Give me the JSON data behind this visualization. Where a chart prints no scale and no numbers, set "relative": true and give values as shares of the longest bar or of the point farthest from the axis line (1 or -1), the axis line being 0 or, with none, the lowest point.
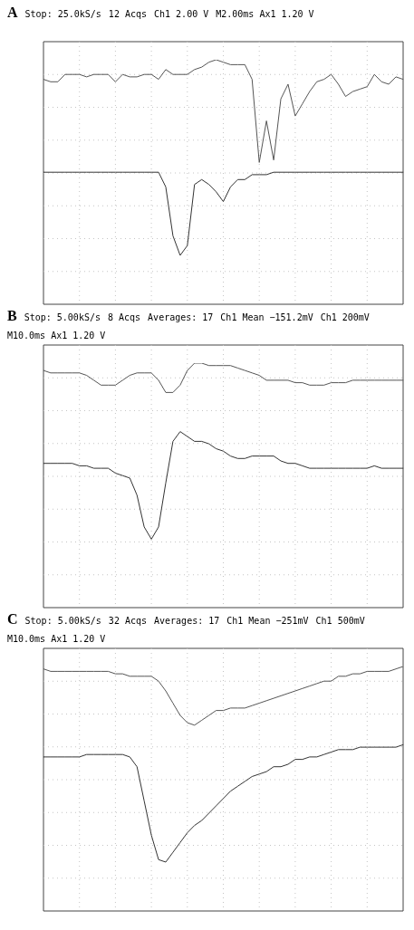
{
  "chart_data": [
    {
      "type": "line",
      "title": "A",
      "relative": true,
      "grid": true,
      "legend": false,
      "tick_labels": false,
      "marker": "none",
      "line_style": "solid",
      "annotations": [
        "Stop: 25.0kS/s",
        "12 Acqs",
        "Ch1 2.00 V",
        "M2.00ms Ax1 1.20 V"
      ],
      "categories": [
        null,
        null,
        null,
        null,
        null,
        null,
        null,
        null,
        null,
        null,
        null,
        null,
        null,
        null,
        null,
        null,
        null,
        null,
        null,
        null,
        null,
        null,
        null,
        null,
        null,
        null,
        null,
        null,
        null,
        null,
        null,
        null,
        null,
        null,
        null,
        null,
        null,
        null,
        null,
        null,
        null,
        null,
        null,
        null,
        null,
        null,
        null,
        null,
        null,
        null,
        null
      ],
      "series": [
        {
          "color": "#555555",
          "values": [
            0.92,
            0.91,
            0.91,
            0.94,
            0.94,
            0.94,
            0.93,
            0.94,
            0.94,
            0.94,
            0.91,
            0.94,
            0.93,
            0.93,
            0.94,
            0.94,
            0.92,
            0.96,
            0.94,
            0.94,
            0.94,
            0.96,
            0.97,
            0.99,
            1.0,
            0.99,
            0.98,
            0.98,
            0.98,
            0.92,
            0.58,
            0.75,
            0.59,
            0.84,
            0.9,
            0.77,
            0.82,
            0.87,
            0.91,
            0.92,
            0.94,
            0.9,
            0.85,
            0.87,
            0.88,
            0.89,
            0.94,
            0.91,
            0.9,
            0.93,
            0.92
          ]
        },
        {
          "color": "#333333",
          "values": [
            0.54,
            0.54,
            0.54,
            0.54,
            0.54,
            0.54,
            0.54,
            0.54,
            0.54,
            0.54,
            0.54,
            0.54,
            0.54,
            0.54,
            0.54,
            0.54,
            0.54,
            0.48,
            0.28,
            0.2,
            0.24,
            0.49,
            0.51,
            0.49,
            0.46,
            0.42,
            0.48,
            0.51,
            0.51,
            0.53,
            0.53,
            0.53,
            0.54,
            0.54,
            0.54,
            0.54,
            0.54,
            0.54,
            0.54,
            0.54,
            0.54,
            0.54,
            0.54,
            0.54,
            0.54,
            0.54,
            0.54,
            0.54,
            0.54,
            0.54,
            0.54
          ]
        }
      ]
    },
    {
      "type": "line",
      "title": "B",
      "relative": true,
      "grid": true,
      "legend": false,
      "tick_labels": false,
      "marker": "none",
      "line_style": "solid",
      "annotations": [
        "Stop: 5.00kS/s",
        "8 Acqs",
        "Averages: 17",
        "Ch1 Mean −151.2mV",
        "Ch1 200mV",
        "M10.0ms Ax1 1.20 V"
      ],
      "categories": [
        null,
        null,
        null,
        null,
        null,
        null,
        null,
        null,
        null,
        null,
        null,
        null,
        null,
        null,
        null,
        null,
        null,
        null,
        null,
        null,
        null,
        null,
        null,
        null,
        null,
        null,
        null,
        null,
        null,
        null,
        null,
        null,
        null,
        null,
        null,
        null,
        null,
        null,
        null,
        null,
        null,
        null,
        null,
        null,
        null,
        null,
        null,
        null,
        null,
        null,
        null
      ],
      "series": [
        {
          "color": "#555555",
          "values": [
            0.97,
            0.96,
            0.96,
            0.96,
            0.96,
            0.96,
            0.95,
            0.93,
            0.91,
            0.91,
            0.91,
            0.93,
            0.95,
            0.96,
            0.96,
            0.96,
            0.93,
            0.88,
            0.88,
            0.91,
            0.97,
            1.0,
            1.0,
            0.99,
            0.99,
            0.99,
            0.99,
            0.98,
            0.97,
            0.96,
            0.95,
            0.93,
            0.93,
            0.93,
            0.93,
            0.92,
            0.92,
            0.91,
            0.91,
            0.91,
            0.92,
            0.92,
            0.92,
            0.93,
            0.93,
            0.93,
            0.93,
            0.93,
            0.93,
            0.93,
            0.93
          ]
        },
        {
          "color": "#333333",
          "values": [
            0.59,
            0.59,
            0.59,
            0.59,
            0.59,
            0.58,
            0.58,
            0.57,
            0.57,
            0.57,
            0.55,
            0.54,
            0.53,
            0.46,
            0.33,
            0.28,
            0.33,
            0.51,
            0.68,
            0.72,
            0.7,
            0.68,
            0.68,
            0.67,
            0.65,
            0.64,
            0.62,
            0.61,
            0.61,
            0.62,
            0.62,
            0.62,
            0.62,
            0.6,
            0.59,
            0.59,
            0.58,
            0.57,
            0.57,
            0.57,
            0.57,
            0.57,
            0.57,
            0.57,
            0.57,
            0.57,
            0.58,
            0.57,
            0.57,
            0.57,
            0.57
          ]
        }
      ]
    },
    {
      "type": "line",
      "title": "C",
      "relative": true,
      "grid": true,
      "legend": false,
      "tick_labels": false,
      "marker": "none",
      "line_style": "solid",
      "annotations": [
        "Stop: 5.00kS/s",
        "32 Acqs",
        "Averages: 17",
        "Ch1 Mean −251mV",
        "Ch1 500mV",
        "M10.0ms Ax1 1.20 V"
      ],
      "categories": [
        null,
        null,
        null,
        null,
        null,
        null,
        null,
        null,
        null,
        null,
        null,
        null,
        null,
        null,
        null,
        null,
        null,
        null,
        null,
        null,
        null,
        null,
        null,
        null,
        null,
        null,
        null,
        null,
        null,
        null,
        null,
        null,
        null,
        null,
        null,
        null,
        null,
        null,
        null,
        null,
        null,
        null,
        null,
        null,
        null,
        null,
        null,
        null,
        null,
        null,
        null
      ],
      "series": [
        {
          "color": "#555555",
          "values": [
            0.99,
            0.98,
            0.98,
            0.98,
            0.98,
            0.98,
            0.98,
            0.98,
            0.98,
            0.98,
            0.97,
            0.97,
            0.96,
            0.96,
            0.96,
            0.96,
            0.94,
            0.9,
            0.85,
            0.8,
            0.77,
            0.76,
            0.78,
            0.8,
            0.82,
            0.82,
            0.83,
            0.83,
            0.83,
            0.84,
            0.85,
            0.86,
            0.87,
            0.88,
            0.89,
            0.9,
            0.91,
            0.92,
            0.93,
            0.94,
            0.94,
            0.96,
            0.96,
            0.97,
            0.97,
            0.98,
            0.98,
            0.98,
            0.98,
            0.99,
            1.0
          ]
        },
        {
          "color": "#333333",
          "values": [
            0.63,
            0.63,
            0.63,
            0.63,
            0.63,
            0.63,
            0.64,
            0.64,
            0.64,
            0.64,
            0.64,
            0.64,
            0.63,
            0.59,
            0.45,
            0.31,
            0.21,
            0.2,
            0.24,
            0.28,
            0.32,
            0.35,
            0.37,
            0.4,
            0.43,
            0.46,
            0.49,
            0.51,
            0.53,
            0.55,
            0.56,
            0.57,
            0.59,
            0.59,
            0.6,
            0.62,
            0.62,
            0.63,
            0.63,
            0.64,
            0.65,
            0.66,
            0.66,
            0.66,
            0.67,
            0.67,
            0.67,
            0.67,
            0.67,
            0.67,
            0.68
          ]
        }
      ]
    }
  ]
}
